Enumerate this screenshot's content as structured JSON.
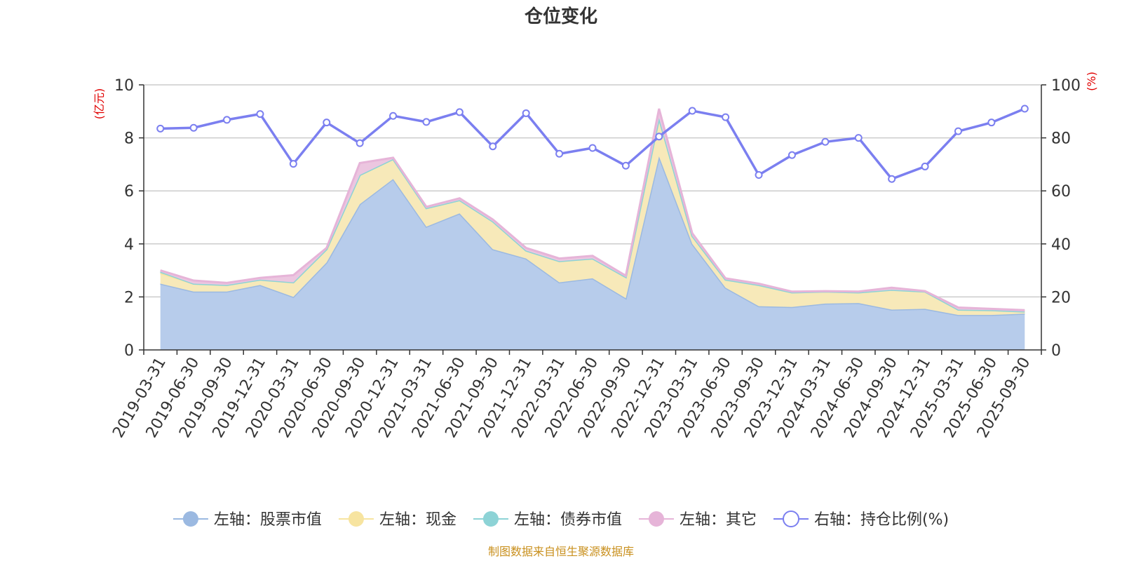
{
  "chart_data": {
    "type": "area",
    "title": "仓位变化",
    "left_unit": "(亿元)",
    "right_unit": "(%)",
    "left_ylim": [
      0,
      10
    ],
    "left_ticks": [
      "0",
      "2",
      "4",
      "6",
      "8",
      "10"
    ],
    "right_ylim": [
      0,
      100
    ],
    "right_ticks": [
      "0",
      "20",
      "40",
      "60",
      "80",
      "100"
    ],
    "categories": [
      "2019-03-31",
      "2019-06-30",
      "2019-09-30",
      "2019-12-31",
      "2020-03-31",
      "2020-06-30",
      "2020-09-30",
      "2020-12-31",
      "2021-03-31",
      "2021-06-30",
      "2021-09-30",
      "2021-12-31",
      "2022-03-31",
      "2022-06-30",
      "2022-09-30",
      "2022-12-31",
      "2023-03-31",
      "2023-06-30",
      "2023-09-30",
      "2023-12-31",
      "2024-03-31",
      "2024-06-30",
      "2024-09-30",
      "2024-12-31",
      "2025-03-31",
      "2025-06-30",
      "2025-09-30"
    ],
    "series": [
      {
        "name": "左轴：股票市值",
        "axis": "left",
        "color": "#9bb9e1",
        "fill": "#b7cceb",
        "values": [
          2.5,
          2.2,
          2.2,
          2.45,
          2.0,
          3.3,
          5.5,
          6.45,
          4.65,
          5.15,
          3.8,
          3.45,
          2.55,
          2.7,
          1.95,
          7.3,
          4.0,
          2.35,
          1.65,
          1.62,
          1.75,
          1.77,
          1.52,
          1.55,
          1.32,
          1.32,
          1.37
        ]
      },
      {
        "name": "左轴：现金",
        "axis": "left",
        "color": "#f7e4a0",
        "fill": "#f7e9b9",
        "values": [
          0.4,
          0.3,
          0.25,
          0.2,
          0.55,
          0.5,
          1.1,
          0.75,
          0.7,
          0.5,
          1.05,
          0.3,
          0.8,
          0.75,
          0.8,
          1.45,
          0.3,
          0.3,
          0.8,
          0.55,
          0.45,
          0.4,
          0.75,
          0.65,
          0.2,
          0.18,
          0.08
        ]
      },
      {
        "name": "左轴：债券市值",
        "axis": "left",
        "color": "#8dd3d6",
        "fill": "#a7dfe1",
        "values": [
          0.05,
          0.0,
          0.0,
          0.0,
          0.0,
          0.0,
          0.0,
          0.0,
          0.0,
          0.0,
          0.0,
          0.0,
          0.0,
          0.0,
          0.0,
          0.0,
          0.0,
          0.0,
          0.0,
          0.0,
          0.0,
          0.0,
          0.0,
          0.0,
          0.0,
          0.0,
          0.0
        ]
      },
      {
        "name": "左轴：其它",
        "axis": "left",
        "color": "#e6b4d8",
        "fill": "#ecc6e0",
        "values": [
          0.05,
          0.12,
          0.08,
          0.07,
          0.27,
          0.05,
          0.45,
          0.05,
          0.05,
          0.07,
          0.07,
          0.1,
          0.1,
          0.1,
          0.05,
          0.35,
          0.1,
          0.05,
          0.05,
          0.03,
          0.02,
          0.03,
          0.08,
          0.02,
          0.08,
          0.05,
          0.05
        ]
      },
      {
        "name": "右轴：持仓比例(%)",
        "axis": "right",
        "color": "#7b7ff0",
        "values": [
          83.5,
          83.8,
          86.8,
          89.0,
          70.2,
          85.8,
          78.0,
          88.3,
          86.0,
          89.7,
          76.8,
          89.3,
          74.0,
          76.2,
          69.5,
          80.5,
          90.2,
          87.8,
          66.0,
          73.5,
          78.5,
          80.0,
          64.5,
          69.2,
          82.5,
          85.8,
          91.0
        ]
      }
    ],
    "source_note": "制图数据来自恒生聚源数据库"
  }
}
